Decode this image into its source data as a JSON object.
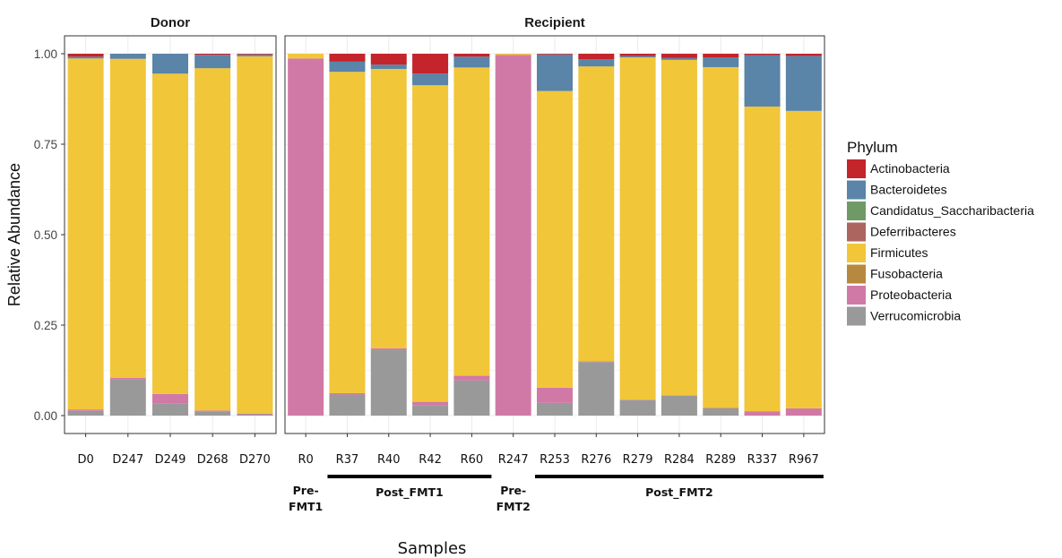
{
  "chart_data": {
    "type": "bar",
    "stacked": true,
    "ylabel": "Relative Abundance",
    "xlabel": "Samples",
    "ylim": [
      0,
      1
    ],
    "yticks": [
      0,
      0.25,
      0.5,
      0.75,
      1.0
    ],
    "ytick_labels": [
      "0.00",
      "0.25",
      "0.50",
      "0.75",
      "1.00"
    ],
    "legend_title": "Phylum",
    "phyla": [
      {
        "name": "Actinobacteria",
        "color": "#c4242b"
      },
      {
        "name": "Bacteroidetes",
        "color": "#5a84a8"
      },
      {
        "name": "Candidatus_Saccharibacteria",
        "color": "#6f9a66"
      },
      {
        "name": "Deferribacteres",
        "color": "#ad6560"
      },
      {
        "name": "Firmicutes",
        "color": "#f1c639"
      },
      {
        "name": "Fusobacteria",
        "color": "#b7893e"
      },
      {
        "name": "Proteobacteria",
        "color": "#d179a6"
      },
      {
        "name": "Verrucomicrobia",
        "color": "#999999"
      }
    ],
    "stack_order_bottom_to_top": [
      "Verrucomicrobia",
      "Proteobacteria",
      "Fusobacteria",
      "Firmicutes",
      "Deferribacteres",
      "Candidatus_Saccharibacteria",
      "Bacteroidetes",
      "Actinobacteria"
    ],
    "panels": [
      {
        "title": "Donor",
        "samples": [
          {
            "label": "D0",
            "values": {
              "Verrucomicrobia": 0.013,
              "Proteobacteria": 0.004,
              "Firmicutes": 0.97,
              "Bacteroidetes": 0.005,
              "Actinobacteria": 0.008
            }
          },
          {
            "label": "D247",
            "values": {
              "Verrucomicrobia": 0.1,
              "Proteobacteria": 0.004,
              "Firmicutes": 0.882,
              "Bacteroidetes": 0.014
            }
          },
          {
            "label": "D249",
            "values": {
              "Verrucomicrobia": 0.033,
              "Proteobacteria": 0.027,
              "Firmicutes": 0.885,
              "Bacteroidetes": 0.055
            }
          },
          {
            "label": "D268",
            "values": {
              "Verrucomicrobia": 0.012,
              "Proteobacteria": 0.002,
              "Firmicutes": 0.946,
              "Bacteroidetes": 0.037,
              "Actinobacteria": 0.003
            }
          },
          {
            "label": "D270",
            "values": {
              "Verrucomicrobia": 0.004,
              "Proteobacteria": 0.001,
              "Firmicutes": 0.988,
              "Bacteroidetes": 0.005,
              "Actinobacteria": 0.002
            }
          }
        ],
        "groups": []
      },
      {
        "title": "Recipient",
        "samples": [
          {
            "label": "R0",
            "values": {
              "Proteobacteria": 0.987,
              "Firmicutes": 0.013
            }
          },
          {
            "label": "R37",
            "values": {
              "Verrucomicrobia": 0.058,
              "Proteobacteria": 0.004,
              "Firmicutes": 0.888,
              "Bacteroidetes": 0.028,
              "Actinobacteria": 0.022
            }
          },
          {
            "label": "R40",
            "values": {
              "Verrucomicrobia": 0.183,
              "Proteobacteria": 0.003,
              "Firmicutes": 0.772,
              "Bacteroidetes": 0.012,
              "Actinobacteria": 0.03
            }
          },
          {
            "label": "R42",
            "values": {
              "Verrucomicrobia": 0.028,
              "Proteobacteria": 0.01,
              "Firmicutes": 0.875,
              "Bacteroidetes": 0.032,
              "Actinobacteria": 0.055
            }
          },
          {
            "label": "R60",
            "values": {
              "Verrucomicrobia": 0.097,
              "Proteobacteria": 0.013,
              "Firmicutes": 0.852,
              "Bacteroidetes": 0.03,
              "Actinobacteria": 0.008
            }
          },
          {
            "label": "R247",
            "values": {
              "Proteobacteria": 0.997,
              "Firmicutes": 0.003
            }
          },
          {
            "label": "R253",
            "values": {
              "Verrucomicrobia": 0.035,
              "Proteobacteria": 0.042,
              "Firmicutes": 0.82,
              "Bacteroidetes": 0.101,
              "Actinobacteria": 0.002
            }
          },
          {
            "label": "R276",
            "values": {
              "Verrucomicrobia": 0.148,
              "Proteobacteria": 0.002,
              "Firmicutes": 0.815,
              "Bacteroidetes": 0.02,
              "Actinobacteria": 0.015
            }
          },
          {
            "label": "R279",
            "values": {
              "Verrucomicrobia": 0.043,
              "Proteobacteria": 0.001,
              "Firmicutes": 0.946,
              "Bacteroidetes": 0.004,
              "Actinobacteria": 0.006
            }
          },
          {
            "label": "R284",
            "values": {
              "Verrucomicrobia": 0.055,
              "Proteobacteria": 0.001,
              "Firmicutes": 0.927,
              "Bacteroidetes": 0.005,
              "Actinobacteria": 0.012
            }
          },
          {
            "label": "R289",
            "values": {
              "Verrucomicrobia": 0.02,
              "Proteobacteria": 0.001,
              "Firmicutes": 0.942,
              "Bacteroidetes": 0.027,
              "Actinobacteria": 0.01
            }
          },
          {
            "label": "R337",
            "values": {
              "Proteobacteria": 0.012,
              "Firmicutes": 0.842,
              "Bacteroidetes": 0.142,
              "Actinobacteria": 0.004
            }
          },
          {
            "label": "R967",
            "values": {
              "Proteobacteria": 0.02,
              "Firmicutes": 0.822,
              "Bacteroidetes": 0.152,
              "Actinobacteria": 0.006
            }
          }
        ],
        "groups": [
          {
            "label": [
              "Pre-",
              "FMT1"
            ],
            "start": 0,
            "end": 0,
            "line": false
          },
          {
            "label": [
              "Post_FMT1"
            ],
            "start": 1,
            "end": 4,
            "line": true
          },
          {
            "label": [
              "Pre-",
              "FMT2"
            ],
            "start": 5,
            "end": 5,
            "line": false
          },
          {
            "label": [
              "Post_FMT2"
            ],
            "start": 6,
            "end": 12,
            "line": true
          }
        ]
      }
    ]
  }
}
